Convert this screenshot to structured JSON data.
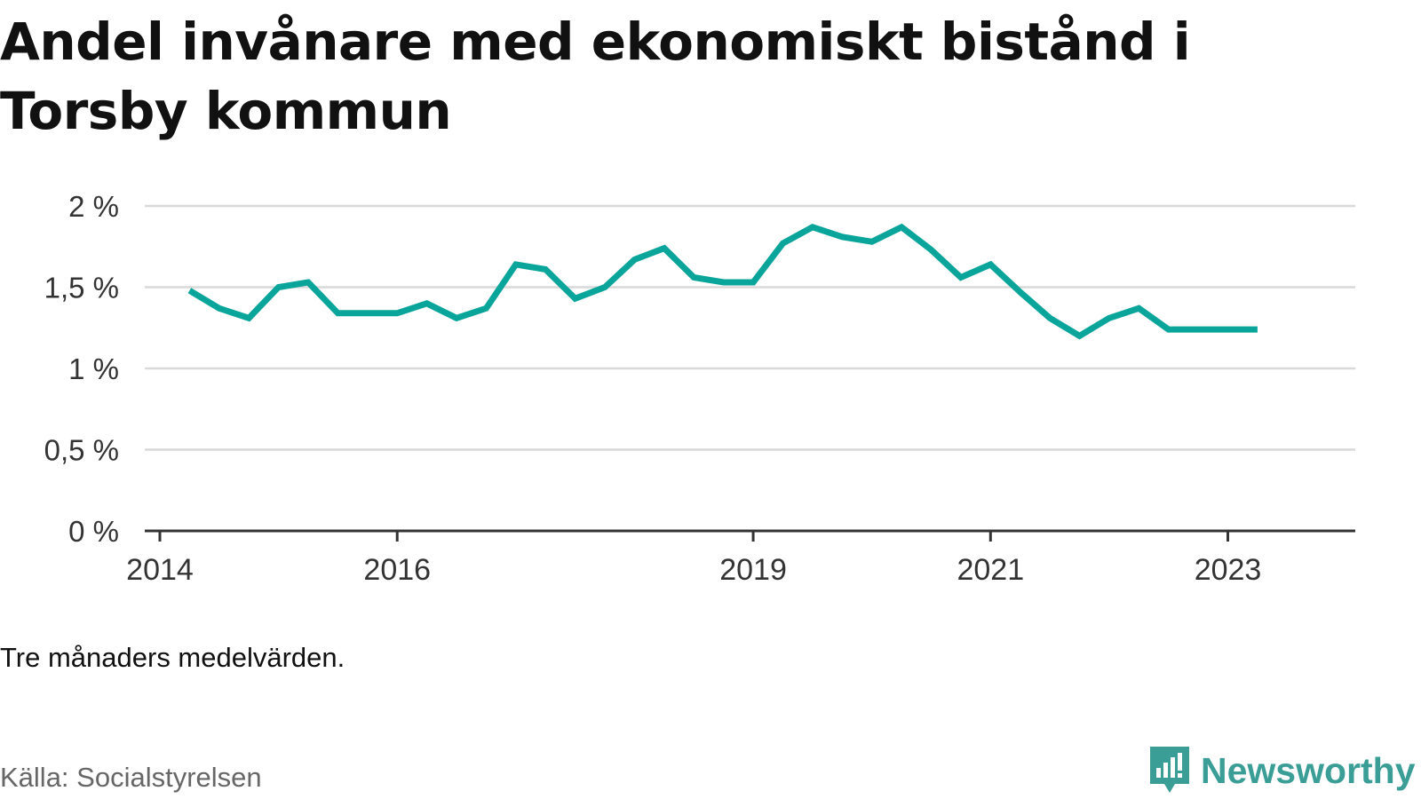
{
  "title": "Andel invånare med ekonomiskt bistånd i Torsby kommun",
  "note": "Tre månaders medelvärden.",
  "source": "Källa: Socialstyrelsen",
  "brand": {
    "name": "Newsworthy",
    "color": "#3a9e97"
  },
  "colors": {
    "line": "#0aa59a",
    "grid": "#d9d9d9",
    "axis": "#333333",
    "text": "#333333"
  },
  "chart_data": {
    "type": "line",
    "title": "Andel invånare med ekonomiskt bistånd i Torsby kommun",
    "xlabel": "",
    "ylabel": "",
    "ylim": [
      0,
      2
    ],
    "y_ticks": [
      0,
      0.5,
      1,
      1.5,
      2
    ],
    "y_tick_labels": [
      "0 %",
      "0,5 %",
      "1 %",
      "1,5 %",
      "2 %"
    ],
    "x_range": [
      "2014-01",
      "2023-12"
    ],
    "x_ticks": [
      "2014-01",
      "2016-01",
      "2019-01",
      "2021-01",
      "2023-01"
    ],
    "x_tick_labels": [
      "2014",
      "2016",
      "2019",
      "2021",
      "2023"
    ],
    "grid": true,
    "series": [
      {
        "x": [
          "2014-04",
          "2014-07",
          "2014-10",
          "2015-01",
          "2015-04",
          "2015-07",
          "2015-10",
          "2016-01",
          "2016-04",
          "2016-07",
          "2016-10",
          "2017-01",
          "2017-04",
          "2017-07",
          "2017-10",
          "2018-01",
          "2018-04",
          "2018-07",
          "2018-10",
          "2019-01",
          "2019-04",
          "2019-07",
          "2019-10",
          "2020-01",
          "2020-04",
          "2020-07",
          "2020-10",
          "2021-01",
          "2021-04",
          "2021-07",
          "2021-10",
          "2022-01",
          "2022-04",
          "2022-07",
          "2022-10",
          "2023-01",
          "2023-04"
        ],
        "values": [
          1.48,
          1.37,
          1.31,
          1.5,
          1.53,
          1.34,
          1.34,
          1.34,
          1.4,
          1.31,
          1.37,
          1.64,
          1.61,
          1.43,
          1.5,
          1.67,
          1.74,
          1.56,
          1.53,
          1.53,
          1.77,
          1.87,
          1.81,
          1.78,
          1.87,
          1.73,
          1.56,
          1.64,
          1.47,
          1.31,
          1.2,
          1.31,
          1.37,
          1.24,
          1.24,
          1.24,
          1.24
        ]
      }
    ]
  }
}
